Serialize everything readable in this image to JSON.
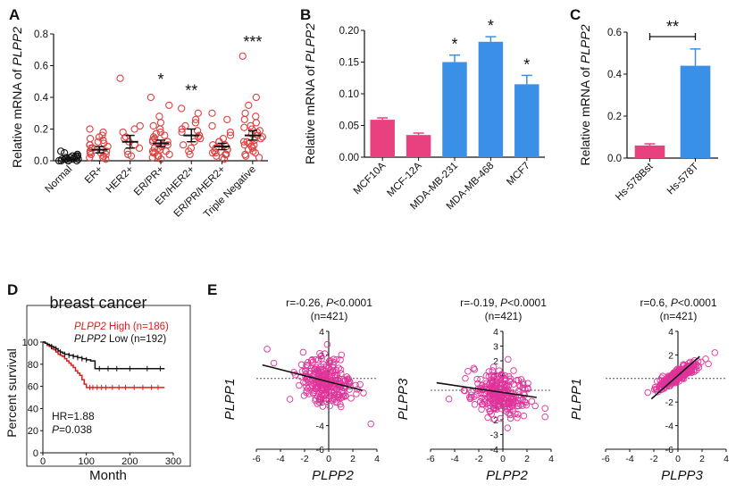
{
  "colors": {
    "pink": "#e9417f",
    "blue": "#3a8fe6",
    "red": "#e41a1a",
    "black": "#111111",
    "scatter_red": "#e04040",
    "scatter_magenta": "#e0339a",
    "fit_line": "#111111",
    "zero_line": "#555555"
  },
  "chart_data": [
    {
      "panel": "A",
      "type": "scatter",
      "ylabel_prefix": "Relative mRNA of ",
      "ylabel_gene": "PLPP2",
      "ylim": [
        0,
        0.8
      ],
      "yticks": [
        "0.0",
        "0.2",
        "0.4",
        "0.6",
        "0.8"
      ],
      "ytick_values": [
        0,
        0.2,
        0.4,
        0.6,
        0.8
      ],
      "categories": [
        "Normal",
        "ER+",
        "HER2+",
        "ER/PR+",
        "ER/HER2+",
        "ER/PR/HER2+",
        "Triple Negative"
      ],
      "means": [
        0.01,
        0.07,
        0.12,
        0.11,
        0.16,
        0.09,
        0.16
      ],
      "sem_low": [
        0.0,
        0.05,
        0.08,
        0.09,
        0.12,
        0.07,
        0.13
      ],
      "sem_high": [
        0.02,
        0.09,
        0.16,
        0.13,
        0.2,
        0.11,
        0.19
      ],
      "significance": [
        "",
        "",
        "",
        "*",
        "**",
        "",
        "***"
      ],
      "points": [
        [
          0.0,
          0.01,
          0.02,
          0.03,
          0.05,
          0.0,
          0.01,
          0.02,
          0.04,
          0.0,
          0.01,
          0.03,
          0.06,
          0.0,
          0.02,
          0.01,
          0.0,
          0.02,
          0.01,
          0.03
        ],
        [
          0.02,
          0.04,
          0.06,
          0.08,
          0.1,
          0.12,
          0.14,
          0.16,
          0.18,
          0.2,
          0.05,
          0.07,
          0.09,
          0.03,
          0.11,
          0.13,
          0.01,
          0.04,
          0.06,
          0.08,
          0.02,
          0.15,
          0.1,
          0.05
        ],
        [
          0.52,
          0.22,
          0.18,
          0.15,
          0.1,
          0.08,
          0.06,
          0.04,
          0.12,
          0.03,
          0.2,
          0.14
        ],
        [
          0.4,
          0.35,
          0.28,
          0.24,
          0.2,
          0.18,
          0.16,
          0.15,
          0.14,
          0.12,
          0.11,
          0.1,
          0.09,
          0.08,
          0.07,
          0.06,
          0.05,
          0.04,
          0.03,
          0.02,
          0.01,
          0.13,
          0.17,
          0.1,
          0.08,
          0.06,
          0.22,
          0.05,
          0.03,
          0.12
        ],
        [
          0.33,
          0.3,
          0.26,
          0.24,
          0.22,
          0.2,
          0.18,
          0.16,
          0.14,
          0.12,
          0.1,
          0.08,
          0.06,
          0.04,
          0.15,
          0.19
        ],
        [
          0.3,
          0.26,
          0.22,
          0.18,
          0.16,
          0.14,
          0.12,
          0.1,
          0.09,
          0.08,
          0.07,
          0.06,
          0.05,
          0.04,
          0.03,
          0.02,
          0.01,
          0.1,
          0.07,
          0.05,
          0.12,
          0.04
        ],
        [
          0.66,
          0.4,
          0.35,
          0.3,
          0.28,
          0.26,
          0.24,
          0.22,
          0.2,
          0.18,
          0.17,
          0.16,
          0.15,
          0.14,
          0.13,
          0.12,
          0.11,
          0.1,
          0.09,
          0.08,
          0.07,
          0.06,
          0.05,
          0.04,
          0.03,
          0.02,
          0.12,
          0.19,
          0.21,
          0.1
        ]
      ]
    },
    {
      "panel": "B",
      "type": "bar",
      "ylabel_prefix": "Relative mRNA of ",
      "ylabel_gene": "PLPP2",
      "ylim": [
        0,
        0.2
      ],
      "yticks": [
        "0.00",
        "0.05",
        "0.10",
        "0.15",
        "0.20"
      ],
      "ytick_values": [
        0,
        0.05,
        0.1,
        0.15,
        0.2
      ],
      "categories": [
        "MCF10A",
        "MCF-12A",
        "MDA-MB-231",
        "MDA-MB-468",
        "MCF7"
      ],
      "values": [
        0.059,
        0.035,
        0.15,
        0.182,
        0.115
      ],
      "errors": [
        0.003,
        0.003,
        0.011,
        0.008,
        0.014
      ],
      "bar_colors": [
        "pink",
        "pink",
        "blue",
        "blue",
        "blue"
      ],
      "significance": [
        "",
        "",
        "*",
        "*",
        "*"
      ]
    },
    {
      "panel": "C",
      "type": "bar",
      "ylabel_prefix": "Relative mRNA of ",
      "ylabel_gene": "PLPP2",
      "ylim": [
        0,
        0.6
      ],
      "yticks": [
        "0.0",
        "0.2",
        "0.4",
        "0.6"
      ],
      "ytick_values": [
        0,
        0.2,
        0.4,
        0.6
      ],
      "categories": [
        "Hs-578Bst",
        "Hs-578T"
      ],
      "values": [
        0.06,
        0.44
      ],
      "errors": [
        0.008,
        0.08
      ],
      "bar_colors": [
        "pink",
        "blue"
      ],
      "significance_bracket": "**"
    },
    {
      "panel": "D",
      "type": "line",
      "title": "breast cancer",
      "ylabel": "Percent survival",
      "xlabel": "Month",
      "xlim": [
        0,
        300
      ],
      "ylim": [
        0,
        100
      ],
      "xticks": [
        "0",
        "100",
        "200",
        "300"
      ],
      "xtick_values": [
        0,
        100,
        200,
        300
      ],
      "yticks": [
        "0",
        "20",
        "40",
        "60",
        "80",
        "100"
      ],
      "ytick_values": [
        0,
        20,
        40,
        60,
        80,
        100
      ],
      "legend": [
        {
          "gene": "PLPP2",
          "label": " High (n=186)",
          "color": "red"
        },
        {
          "gene": "PLPP2",
          "label": " Low (n=192)",
          "color": "black"
        }
      ],
      "annotation_hr": "HR=1.88",
      "annotation_p_italic": "P",
      "annotation_p_value": "=0.038",
      "series": [
        {
          "name": "PLPP2 High",
          "color": "red",
          "x": [
            0,
            5,
            10,
            15,
            20,
            25,
            30,
            35,
            40,
            45,
            50,
            55,
            60,
            65,
            70,
            75,
            80,
            85,
            90,
            95,
            100,
            105,
            280
          ],
          "y": [
            100,
            99,
            97,
            96,
            94,
            93,
            91,
            89,
            88,
            87,
            85,
            83,
            81,
            79,
            77,
            74,
            72,
            70,
            66,
            62,
            59,
            59,
            59
          ]
        },
        {
          "name": "PLPP2 Low",
          "color": "black",
          "x": [
            0,
            5,
            10,
            15,
            20,
            25,
            30,
            35,
            40,
            45,
            50,
            60,
            70,
            80,
            90,
            100,
            110,
            120,
            160,
            280
          ],
          "y": [
            100,
            99,
            98,
            97,
            96,
            95,
            94,
            92,
            91,
            90,
            89,
            88,
            87,
            86,
            85,
            84,
            83,
            76,
            76,
            76
          ]
        }
      ],
      "censor_high_x": [
        108,
        115,
        125,
        135,
        145,
        160,
        175,
        190,
        210,
        230,
        250,
        265
      ],
      "censor_low_x": [
        20,
        30,
        40,
        50,
        60,
        70,
        80,
        90,
        100,
        130,
        150,
        170,
        200,
        240,
        270
      ]
    },
    {
      "panel": "E1",
      "type": "scatter",
      "stat_prefix": "r=-0.26, ",
      "stat_p_italic": "P",
      "stat_p_value": "<0.0001",
      "n_label": "(n=421)",
      "xlabel": "PLPP2",
      "ylabel": "PLPP1",
      "xlim": [
        -6,
        4
      ],
      "ylim": [
        -6,
        4
      ],
      "xticks": [
        "-6",
        "-4",
        "-2",
        "0",
        "2",
        "4"
      ],
      "xtick_values": [
        -6,
        -4,
        -2,
        0,
        2,
        4
      ],
      "yticks": [
        "-6",
        "-4",
        "-2",
        "0",
        "2",
        "4"
      ],
      "ytick_values": [
        -6,
        -4,
        -2,
        0,
        2,
        4
      ],
      "fit": {
        "slope": -0.26,
        "intercept": -0.28,
        "x_range": [
          -5.5,
          2.8
        ]
      },
      "cloud": {
        "cx": -0.2,
        "sx": 1.2,
        "cy": -0.25,
        "sy": 1.0,
        "n": 260,
        "seed": 11
      }
    },
    {
      "panel": "E2",
      "type": "scatter",
      "stat_prefix": "r=-0.19, ",
      "stat_p_italic": "P",
      "stat_p_value": "<0.0001",
      "n_label": "(n=421)",
      "xlabel": "PLPP2",
      "ylabel": "PLPP3",
      "xlim": [
        -6,
        4
      ],
      "ylim": [
        -4,
        4
      ],
      "xticks": [
        "-6",
        "-4",
        "-2",
        "0",
        "2",
        "4"
      ],
      "xtick_values": [
        -6,
        -4,
        -2,
        0,
        2,
        4
      ],
      "yticks": [
        "-4",
        "-3",
        "-2",
        "-1",
        "0",
        "1",
        "2",
        "3",
        "4"
      ],
      "ytick_values": [
        -4,
        -3,
        -2,
        -1,
        0,
        1,
        2,
        3,
        4
      ],
      "fit": {
        "slope": -0.12,
        "intercept": -0.15,
        "x_range": [
          -5.5,
          2.8
        ]
      },
      "cloud": {
        "cx": -0.2,
        "sx": 1.2,
        "cy": -0.15,
        "sy": 0.8,
        "n": 260,
        "seed": 23
      }
    },
    {
      "panel": "E3",
      "type": "scatter",
      "stat_prefix": "r=0.6, ",
      "stat_p_italic": "P",
      "stat_p_value": "<0.0001",
      "n_label": "(n=421)",
      "xlabel": "PLPP3",
      "ylabel": "PLPP1",
      "xlim": [
        -6,
        4
      ],
      "ylim": [
        -6,
        4
      ],
      "xticks": [
        "-6",
        "-4",
        "-2",
        "0",
        "2",
        "4"
      ],
      "xtick_values": [
        -6,
        -4,
        -2,
        0,
        2,
        4
      ],
      "yticks": [
        "-6",
        "-4",
        "-2",
        "0",
        "2",
        "4"
      ],
      "ytick_values": [
        -6,
        -4,
        -2,
        0,
        2,
        4
      ],
      "fit": {
        "slope": 0.9,
        "intercept": 0.25,
        "x_range": [
          -2.2,
          1.8
        ]
      },
      "cloud": {
        "cx": 0.0,
        "sx": 0.85,
        "cy": 0.25,
        "sy": 0.55,
        "n": 260,
        "seed": 37,
        "corr": 0.9
      }
    }
  ],
  "panel_letters": [
    "A",
    "B",
    "C",
    "D",
    "E"
  ]
}
